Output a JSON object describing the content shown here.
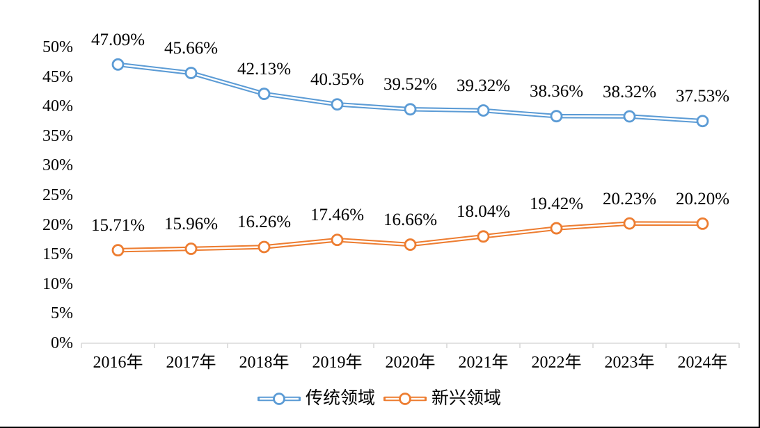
{
  "page": {
    "background": "#FFFFFF",
    "frame_border_color": "#000000"
  },
  "chart_data": {
    "type": "line",
    "title": "",
    "categories": [
      "2016年",
      "2017年",
      "2018年",
      "2019年",
      "2020年",
      "2021年",
      "2022年",
      "2023年",
      "2024年"
    ],
    "series": [
      {
        "name": "传统领域",
        "color": "#5B9BD5",
        "values": [
          47.09,
          45.66,
          42.13,
          40.35,
          39.52,
          39.32,
          38.36,
          38.32,
          37.53
        ]
      },
      {
        "name": "新兴领域",
        "color": "#ED7D31",
        "values": [
          15.71,
          15.96,
          16.26,
          17.46,
          16.66,
          18.04,
          19.42,
          20.23,
          20.2
        ]
      }
    ],
    "data_labels_visible": true,
    "data_label_suffix": "%",
    "data_label_decimals": 2,
    "xlabel": "",
    "ylabel": "",
    "ylim": [
      0,
      50
    ],
    "ytick_step": 5,
    "ytick_labels": [
      "0%",
      "5%",
      "10%",
      "15%",
      "20%",
      "25%",
      "30%",
      "35%",
      "40%",
      "45%",
      "50%"
    ],
    "grid": false,
    "legend_position": "bottom",
    "axis_color": "#D9D9D9",
    "text_color": "#000000",
    "line_style": "double-line",
    "marker": "open-circle"
  }
}
